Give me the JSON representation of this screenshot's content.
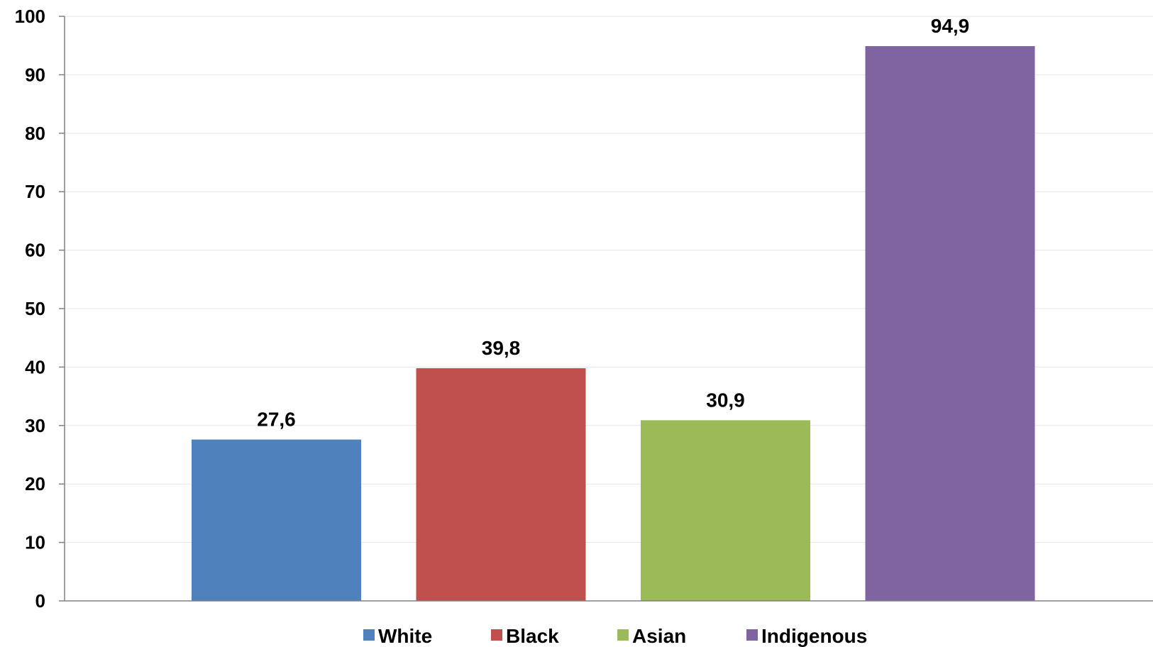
{
  "chart_data": {
    "type": "bar",
    "categories": [
      "White",
      "Black",
      "Asian",
      "Indigenous"
    ],
    "values": [
      27.6,
      39.8,
      30.9,
      94.9
    ],
    "data_labels": [
      "27,6",
      "39,8",
      "30,9",
      "94,9"
    ],
    "colors": [
      "#4F81BD",
      "#C0504D",
      "#9BBB59",
      "#8064A2"
    ],
    "title": "",
    "xlabel": "",
    "ylabel": "",
    "ylim": [
      0,
      100
    ],
    "yticks": [
      0,
      10,
      20,
      30,
      40,
      50,
      60,
      70,
      80,
      90,
      100
    ],
    "grid": true,
    "legend": "bottom",
    "gridline_color": "#E6E6E6",
    "axis_color": "#808080"
  }
}
